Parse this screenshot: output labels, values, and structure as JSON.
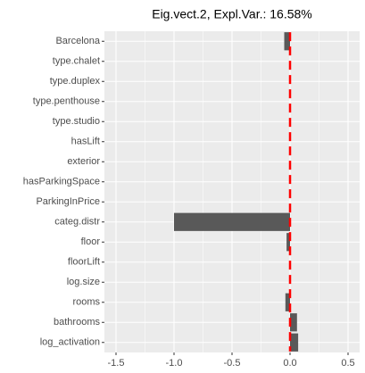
{
  "chart_data": {
    "type": "barh",
    "title": "Eig.vect.2, Expl.Var.: 16.58%",
    "categories": [
      "Barcelona",
      "type.chalet",
      "type.duplex",
      "type.penthouse",
      "type.studio",
      "hasLift",
      "exterior",
      "hasParkingSpace",
      "ParkingInPrice",
      "categ.distr",
      "floor",
      "floorLift",
      "log.size",
      "rooms",
      "bathrooms",
      "log_activation"
    ],
    "values": [
      -0.05,
      0,
      0,
      0,
      0,
      0,
      0,
      0,
      0,
      -1.0,
      -0.03,
      0,
      0,
      -0.04,
      0.06,
      0.07
    ],
    "color": "#595959",
    "reference_line": 0,
    "reference_color": "#ff0000",
    "xlim": [
      -1.6,
      0.6
    ],
    "xticks": [
      -1.5,
      {
        "value": -1,
        "label": "-1.0"
      },
      -0.5,
      {
        "value": 0,
        "label": "0.0"
      },
      0.5
    ],
    "grid": true
  }
}
